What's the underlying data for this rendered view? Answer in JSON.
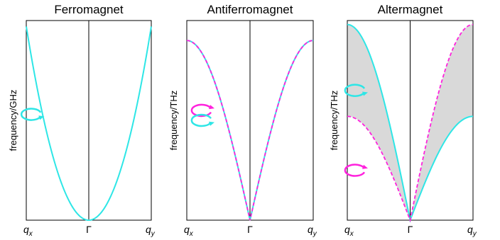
{
  "colors": {
    "cyan": "#2ee6e6",
    "magenta": "#ff22dd",
    "shade": "#d9d9d9",
    "frame": "#000000"
  },
  "chart_data": [
    {
      "type": "line",
      "title": "Ferromagnet",
      "ylabel": "frequency/GHz",
      "x_tick_labels": {
        "left": "q",
        "left_sub": "x",
        "center": "Γ",
        "right": "q",
        "right_sub": "y"
      },
      "xlim": [
        -1,
        1
      ],
      "ylim": [
        0,
        1
      ],
      "series": [
        {
          "color": "cyan",
          "style": "solid",
          "shape": "quadratic",
          "y_left": 0.97,
          "y_right": 0.97
        }
      ],
      "shaded_region": false,
      "precession_icons": [
        {
          "color": "cyan",
          "x": -0.62,
          "y": 0.53,
          "rotation": "counterclockwise"
        }
      ]
    },
    {
      "type": "line",
      "title": "Antiferromagnet",
      "ylabel": "frequency/THz",
      "x_tick_labels": {
        "left": "q",
        "left_sub": "x",
        "center": "Γ",
        "right": "q",
        "right_sub": "y"
      },
      "xlim": [
        -1,
        1
      ],
      "ylim": [
        0,
        1
      ],
      "series": [
        {
          "color": "cyan",
          "style": "solid",
          "shape": "sine",
          "y_left": 0.9,
          "y_right": 0.9
        },
        {
          "color": "magenta",
          "style": "dashed",
          "shape": "sine",
          "y_left": 0.9,
          "y_right": 0.9
        }
      ],
      "shaded_region": false,
      "precession_icons": [
        {
          "color": "magenta",
          "x": -0.47,
          "y": 0.55,
          "rotation": "clockwise"
        },
        {
          "color": "cyan",
          "x": -0.47,
          "y": 0.5,
          "rotation": "counterclockwise"
        }
      ]
    },
    {
      "type": "line",
      "title": "Altermagnet",
      "ylabel": "frequency/THz",
      "x_tick_labels": {
        "left": "q",
        "left_sub": "x",
        "center": "Γ",
        "right": "q",
        "right_sub": "y"
      },
      "xlim": [
        -1,
        1
      ],
      "ylim": [
        0,
        1
      ],
      "series": [
        {
          "color": "cyan",
          "style": "solid",
          "shape": "sine",
          "y_left": 0.98,
          "y_right": 0.52
        },
        {
          "color": "magenta",
          "style": "dashed",
          "shape": "sine",
          "y_left": 0.52,
          "y_right": 0.98
        }
      ],
      "shaded_region": true,
      "precession_icons": [
        {
          "color": "cyan",
          "x": -0.58,
          "y": 0.65,
          "rotation": "counterclockwise"
        },
        {
          "color": "magenta",
          "x": -0.58,
          "y": 0.25,
          "rotation": "clockwise"
        }
      ]
    }
  ]
}
